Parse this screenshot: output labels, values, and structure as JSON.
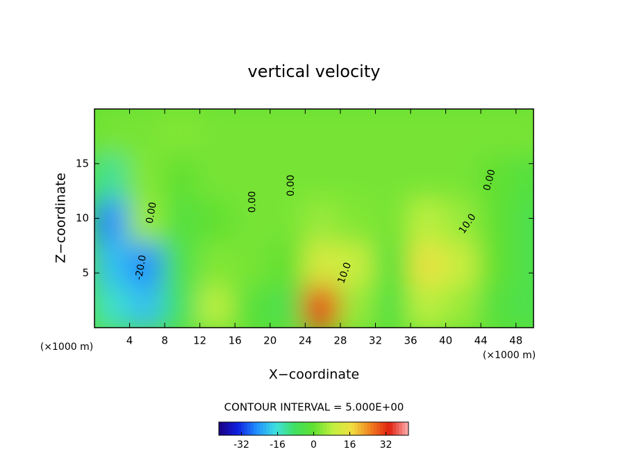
{
  "chart_data": {
    "type": "contour",
    "title": "vertical velocity",
    "x_label": "X−coordinate",
    "y_label": "Z−coordinate",
    "x_unit": "(×1000 m)",
    "y_unit": "(×1000 m)",
    "footer": "CONTOUR INTERVAL = 5.000E+00",
    "xlim": [
      0,
      50
    ],
    "ylim": [
      0,
      20
    ],
    "xticks": [
      4,
      8,
      12,
      16,
      20,
      24,
      28,
      32,
      36,
      40,
      44,
      48
    ],
    "yticks": [
      5,
      10,
      15
    ],
    "x": [
      2,
      6,
      10,
      14,
      18,
      22,
      26,
      30,
      34,
      38,
      42,
      46,
      50
    ],
    "z": [
      2,
      6,
      10,
      14,
      18
    ],
    "values": [
      [
        -15,
        -20,
        -8,
        8,
        -2,
        -5,
        30,
        5,
        -3,
        8,
        5,
        -3,
        -5
      ],
      [
        -20,
        -25,
        -5,
        3,
        2,
        0,
        12,
        10,
        -2,
        15,
        10,
        0,
        -5
      ],
      [
        -25,
        5,
        -3,
        0,
        2,
        2,
        5,
        3,
        2,
        8,
        5,
        0,
        -5
      ],
      [
        -12,
        3,
        0,
        2,
        2,
        2,
        2,
        2,
        2,
        2,
        2,
        0,
        -3
      ],
      [
        2,
        2,
        3,
        2,
        2,
        2,
        2,
        2,
        2,
        2,
        2,
        2,
        2
      ]
    ],
    "colormap": [
      "#1a0080",
      "#1020e0",
      "#2090ff",
      "#40e0e0",
      "#40e060",
      "#60e030",
      "#c0f040",
      "#f0e040",
      "#f08020",
      "#e02010",
      "#ffb0b0"
    ],
    "clim": [
      -42,
      42
    ],
    "cbar_ticks": [
      -32,
      -16,
      0,
      16,
      32
    ],
    "contour_labels": [
      {
        "value": 0,
        "label": "0.00",
        "x": 18,
        "z": 11.5
      },
      {
        "value": 0,
        "label": "0.00",
        "x": 22.4,
        "z": 13
      },
      {
        "value": 0,
        "label": "0.00",
        "x": 45,
        "z": 13.5
      },
      {
        "value": 10,
        "label": "10.0",
        "x": 28.5,
        "z": 5
      },
      {
        "value": 10,
        "label": "10.0",
        "x": 42.5,
        "z": 9.5
      },
      {
        "value": -20,
        "label": "-20.0",
        "x": 5.3,
        "z": 5.5
      },
      {
        "value": 0,
        "label": "0.00",
        "x": 6.5,
        "z": 10.5
      }
    ]
  }
}
